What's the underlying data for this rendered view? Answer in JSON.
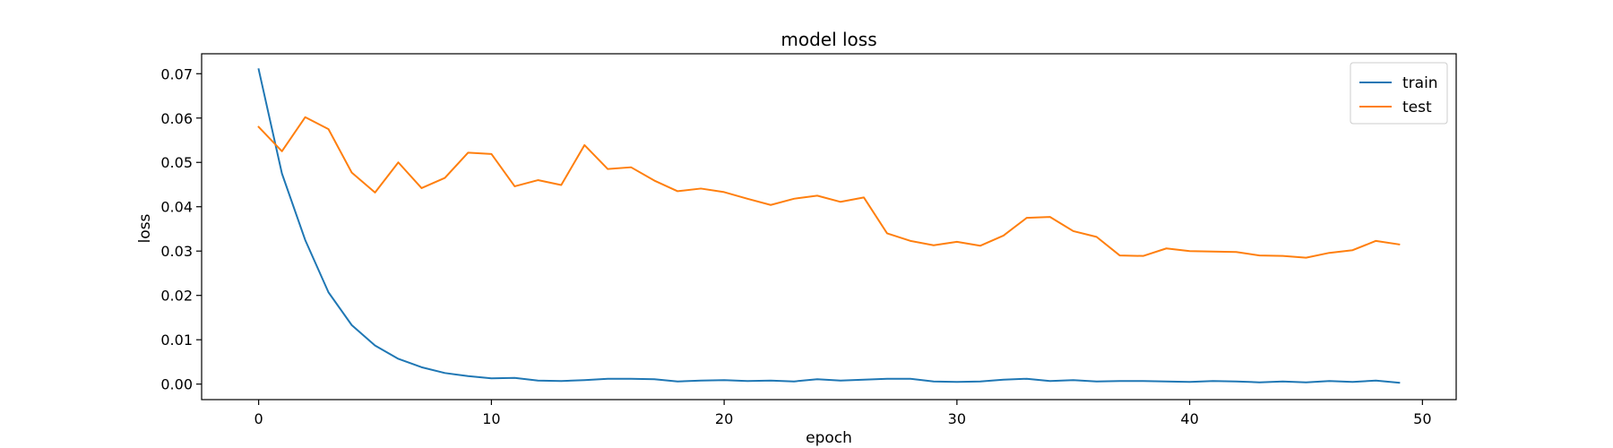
{
  "chart_data": {
    "type": "line",
    "title": "model loss",
    "xlabel": "epoch",
    "ylabel": "loss",
    "xlim": [
      -2.45,
      51.45
    ],
    "ylim": [
      -0.0035,
      0.0745
    ],
    "xticks": [
      0,
      10,
      20,
      30,
      40,
      50
    ],
    "yticks": [
      0.0,
      0.01,
      0.02,
      0.03,
      0.04,
      0.05,
      0.06,
      0.07
    ],
    "ytick_labels": [
      "0.00",
      "0.01",
      "0.02",
      "0.03",
      "0.04",
      "0.05",
      "0.06",
      "0.07"
    ],
    "grid": false,
    "legend_position": "top-right",
    "x": [
      0,
      1,
      2,
      3,
      4,
      5,
      6,
      7,
      8,
      9,
      10,
      11,
      12,
      13,
      14,
      15,
      16,
      17,
      18,
      19,
      20,
      21,
      22,
      23,
      24,
      25,
      26,
      27,
      28,
      29,
      30,
      31,
      32,
      33,
      34,
      35,
      36,
      37,
      38,
      39,
      40,
      41,
      42,
      43,
      44,
      45,
      46,
      47,
      48,
      49
    ],
    "series": [
      {
        "name": "train",
        "color": "#1f77b4",
        "values": [
          0.071,
          0.0475,
          0.0325,
          0.0207,
          0.0133,
          0.0087,
          0.0057,
          0.0038,
          0.0025,
          0.0018,
          0.0013,
          0.0014,
          0.0008,
          0.0007,
          0.0009,
          0.0012,
          0.0012,
          0.0011,
          0.0006,
          0.0008,
          0.0009,
          0.0007,
          0.0008,
          0.0006,
          0.0011,
          0.0008,
          0.001,
          0.0012,
          0.0012,
          0.0006,
          0.0005,
          0.0006,
          0.001,
          0.0012,
          0.0007,
          0.0009,
          0.0006,
          0.0007,
          0.0007,
          0.0006,
          0.0005,
          0.0007,
          0.0006,
          0.0004,
          0.0006,
          0.0004,
          0.0007,
          0.0005,
          0.0008,
          0.0003
        ]
      },
      {
        "name": "test",
        "color": "#ff7f0e",
        "values": [
          0.058,
          0.0525,
          0.0602,
          0.0575,
          0.0477,
          0.0432,
          0.05,
          0.0442,
          0.0465,
          0.0522,
          0.0519,
          0.0446,
          0.046,
          0.0449,
          0.0539,
          0.0485,
          0.0489,
          0.0459,
          0.0435,
          0.0441,
          0.0433,
          0.0418,
          0.0404,
          0.0418,
          0.0425,
          0.0411,
          0.0421,
          0.034,
          0.0323,
          0.0313,
          0.0321,
          0.0312,
          0.0335,
          0.0375,
          0.0377,
          0.0345,
          0.0332,
          0.029,
          0.0289,
          0.0306,
          0.03,
          0.0299,
          0.0298,
          0.029,
          0.0289,
          0.0285,
          0.0296,
          0.0302,
          0.0323,
          0.0315
        ]
      }
    ]
  }
}
